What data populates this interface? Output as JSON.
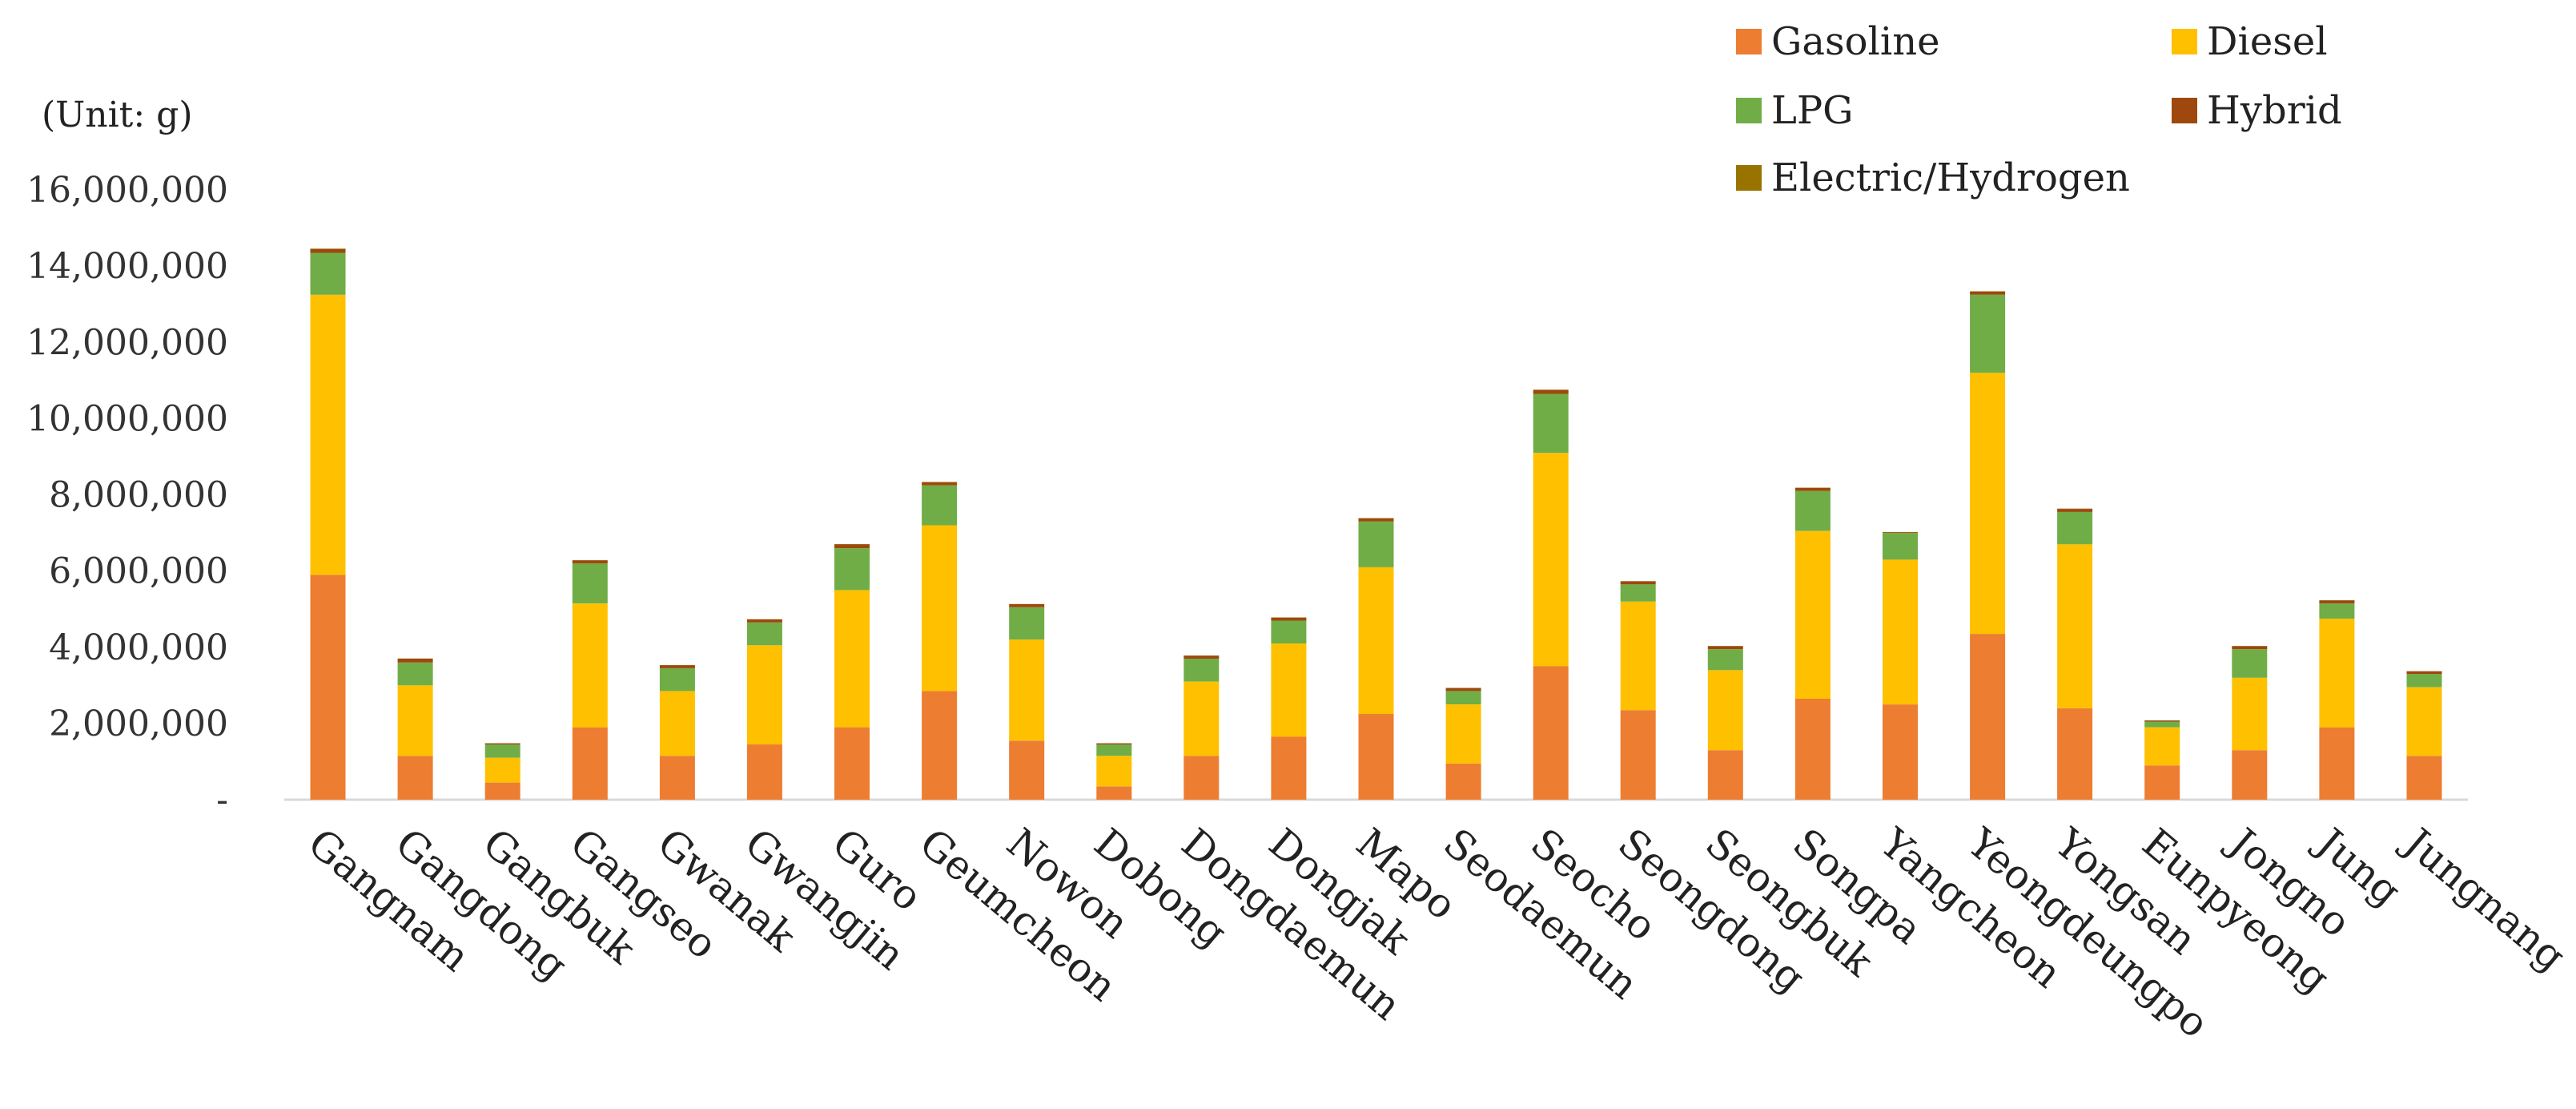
{
  "chart_data": {
    "type": "bar",
    "stacked": true,
    "unit_label": "(Unit: g)",
    "title": "",
    "xlabel": "",
    "ylabel": "",
    "ylim": [
      0,
      16000000
    ],
    "yticks": [
      0,
      2000000,
      4000000,
      6000000,
      8000000,
      10000000,
      12000000,
      14000000,
      16000000
    ],
    "ytick_labels": [
      "-",
      "2,000,000",
      "4,000,000",
      "6,000,000",
      "8,000,000",
      "10,000,000",
      "12,000,000",
      "14,000,000",
      "16,000,000"
    ],
    "grid": false,
    "legend_position": "top-right",
    "categories": [
      "Gangnam",
      "Gangdong",
      "Gangbuk",
      "Gangseo",
      "Gwanak",
      "Gwangjin",
      "Guro",
      "Geumcheon",
      "Nowon",
      "Dobong",
      "Dongdaemun",
      "Dongjak",
      "Mapo",
      "Seodaemun",
      "Seocho",
      "Seongdong",
      "Seongbuk",
      "Songpa",
      "Yangcheon",
      "Yeongdeungpo",
      "Yongsan",
      "Eunpyeong",
      "Jongno",
      "Jung",
      "Jungnang"
    ],
    "series": [
      {
        "name": "Gasoline",
        "color": "#ED7D31",
        "values": [
          5900000,
          1150000,
          450000,
          1900000,
          1150000,
          1450000,
          1900000,
          2850000,
          1550000,
          350000,
          1150000,
          1650000,
          2250000,
          950000,
          3500000,
          2350000,
          1300000,
          2650000,
          2500000,
          4350000,
          2400000,
          900000,
          1300000,
          1900000,
          1150000
        ]
      },
      {
        "name": "Diesel",
        "color": "#FFC000",
        "values": [
          7350000,
          1850000,
          650000,
          3250000,
          1700000,
          2600000,
          3600000,
          4350000,
          2650000,
          800000,
          1950000,
          2450000,
          3850000,
          1550000,
          5600000,
          2850000,
          2100000,
          4400000,
          3800000,
          6850000,
          4300000,
          1000000,
          1900000,
          2850000,
          1800000
        ]
      },
      {
        "name": "LPG",
        "color": "#70AD47",
        "values": [
          1100000,
          600000,
          350000,
          1050000,
          600000,
          600000,
          1100000,
          1050000,
          850000,
          300000,
          600000,
          600000,
          1200000,
          350000,
          1550000,
          450000,
          550000,
          1050000,
          700000,
          2050000,
          850000,
          150000,
          750000,
          400000,
          350000
        ]
      },
      {
        "name": "Hybrid",
        "color": "#9E480E",
        "values": [
          100000,
          100000,
          30000,
          80000,
          80000,
          80000,
          100000,
          80000,
          80000,
          30000,
          80000,
          80000,
          80000,
          80000,
          100000,
          80000,
          80000,
          80000,
          20000,
          80000,
          80000,
          30000,
          80000,
          80000,
          70000
        ]
      },
      {
        "name": "Electric/Hydrogen",
        "color": "#997300",
        "values": [
          10000,
          5000,
          2000,
          8000,
          5000,
          5000,
          8000,
          8000,
          5000,
          2000,
          5000,
          5000,
          8000,
          5000,
          10000,
          5000,
          5000,
          8000,
          5000,
          10000,
          8000,
          3000,
          5000,
          5000,
          4000
        ]
      }
    ]
  }
}
